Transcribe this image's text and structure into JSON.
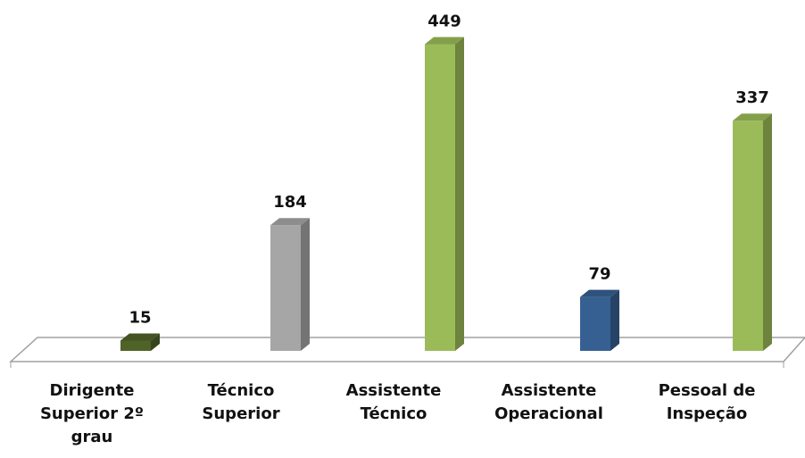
{
  "chart_data": {
    "type": "bar3d",
    "categories": [
      "Dirigente Superior 2º grau",
      "Técnico Superior",
      "Assistente Técnico",
      "Assistente Operacional",
      "Pessoal de Inspeção"
    ],
    "values": [
      15,
      184,
      449,
      79,
      337
    ],
    "colors": [
      "#4f6228",
      "#a6a6a6",
      "#9bbb59",
      "#366092",
      "#9bbb59"
    ]
  }
}
